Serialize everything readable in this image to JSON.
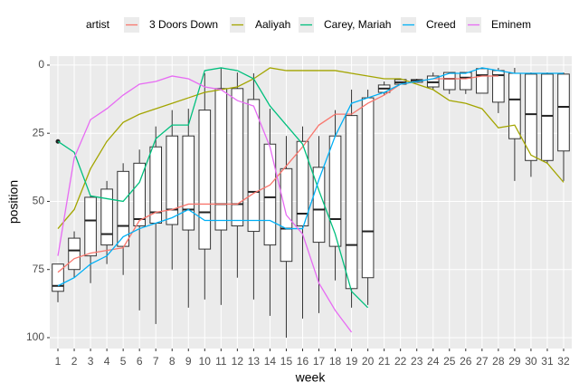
{
  "chart_data": {
    "type": "box",
    "x_label": "week",
    "y_label": "position",
    "legend_title": "artist",
    "legend_position": "top",
    "grid": true,
    "ylim": [
      104,
      -3.3
    ],
    "yticks": [
      0,
      25,
      50,
      75,
      100
    ],
    "categories": [
      1,
      2,
      3,
      4,
      5,
      6,
      7,
      8,
      9,
      10,
      11,
      12,
      13,
      14,
      15,
      16,
      17,
      18,
      19,
      20,
      21,
      22,
      23,
      24,
      25,
      26,
      27,
      28,
      29,
      30,
      31,
      32
    ],
    "box": {
      "min": [
        73,
        61,
        48,
        42.5,
        36,
        31,
        22.5,
        16.5,
        16,
        3,
        1,
        2.7,
        3,
        16,
        26,
        22.5,
        26,
        16.5,
        9,
        9,
        6,
        5,
        5,
        2.7,
        2.7,
        2.7,
        1,
        1,
        1,
        2.7,
        2.7,
        2.7
      ],
      "q1": [
        73,
        63.5,
        48.5,
        45.5,
        39,
        36,
        30,
        26,
        26,
        16.5,
        8.6,
        8.6,
        12.6,
        29,
        38,
        28,
        37.5,
        26,
        18.5,
        12,
        7.3,
        5.3,
        5.3,
        4,
        2.7,
        2.7,
        1.3,
        2,
        3,
        3.3,
        3.3,
        3.3
      ],
      "median": [
        81,
        68,
        57,
        62,
        59,
        56.5,
        54,
        53,
        53,
        54,
        51,
        51,
        46.5,
        48.5,
        60,
        54.5,
        53,
        56.5,
        66,
        61,
        8.6,
        6.3,
        5.6,
        6.3,
        5,
        4.6,
        3.7,
        3.7,
        12.6,
        18,
        18.6,
        15.3
      ],
      "q3": [
        83,
        75,
        70,
        66,
        66.5,
        59,
        58,
        58.5,
        60.5,
        67.5,
        60.5,
        59,
        61,
        66,
        72,
        59,
        65,
        66.5,
        82,
        78,
        10,
        7,
        6.3,
        8,
        9,
        9,
        10.3,
        13.6,
        27,
        35,
        35,
        31.5
      ],
      "max": [
        87,
        78,
        80,
        73,
        77,
        90,
        95,
        75,
        89,
        86,
        88,
        78,
        86,
        92,
        100,
        93,
        91,
        79,
        89,
        88,
        11,
        7,
        6.3,
        9,
        10.6,
        10.6,
        10.3,
        17.6,
        42.5,
        41,
        36,
        42.5
      ]
    },
    "outliers": [
      {
        "x": 1,
        "y": 28
      }
    ],
    "series": [
      {
        "name": "3 Doors Down",
        "color": "#F8766D",
        "values": [
          76,
          71,
          69,
          68,
          67,
          57,
          54,
          53,
          51,
          51,
          51,
          51,
          47,
          44,
          37,
          30,
          22,
          18,
          18,
          14,
          11,
          7,
          6,
          5,
          5,
          5,
          4,
          4,
          null,
          null,
          null,
          null
        ]
      },
      {
        "name": "Aaliyah",
        "color": "#A3A500",
        "values": [
          60,
          53,
          38,
          28,
          21,
          18,
          16,
          14,
          12,
          10,
          9,
          8,
          5,
          1,
          2,
          2,
          2,
          2,
          3,
          4,
          5,
          5,
          7,
          9,
          13,
          14,
          16,
          23,
          22,
          33,
          36,
          43
        ]
      },
      {
        "name": "Carey, Mariah",
        "color": "#00BF7D",
        "values": [
          28,
          32,
          48,
          49,
          50,
          43,
          27,
          22,
          22,
          2,
          1,
          2,
          5,
          15,
          22,
          29,
          46,
          62,
          83,
          89,
          null,
          null,
          null,
          null,
          null,
          null,
          null,
          null,
          null,
          null,
          null,
          null
        ]
      },
      {
        "name": "Creed",
        "color": "#00B0F6",
        "values": [
          81,
          78,
          73,
          70,
          63,
          60,
          58,
          56,
          53,
          57,
          57,
          57,
          57,
          57,
          60,
          60,
          42,
          26,
          14,
          12,
          10,
          7,
          6,
          5,
          3,
          3,
          1,
          2,
          3,
          3,
          3,
          3
        ]
      },
      {
        "name": "Eminem",
        "color": "#E76BF3",
        "values": [
          70,
          34,
          20,
          16,
          11,
          7,
          6,
          4,
          5,
          8,
          9,
          13,
          15,
          30,
          55,
          62,
          80,
          90,
          98,
          null,
          null,
          null,
          null,
          null,
          null,
          null,
          null,
          null,
          null,
          null,
          null,
          null
        ]
      }
    ]
  }
}
